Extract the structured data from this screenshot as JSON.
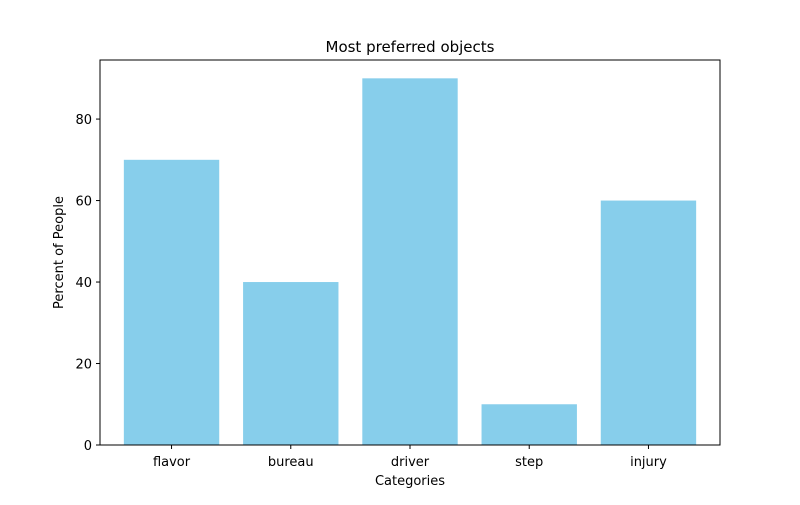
{
  "chart_data": {
    "type": "bar",
    "title": "Most preferred objects",
    "xlabel": "Categories",
    "ylabel": "Percent of People",
    "categories": [
      "flavor",
      "bureau",
      "driver",
      "step",
      "injury"
    ],
    "values": [
      70,
      40,
      90,
      10,
      60
    ],
    "ylim": [
      0,
      94.5
    ],
    "yticks": [
      0,
      20,
      40,
      60,
      80
    ],
    "grid": false,
    "bar_color": "#87CEEB"
  }
}
